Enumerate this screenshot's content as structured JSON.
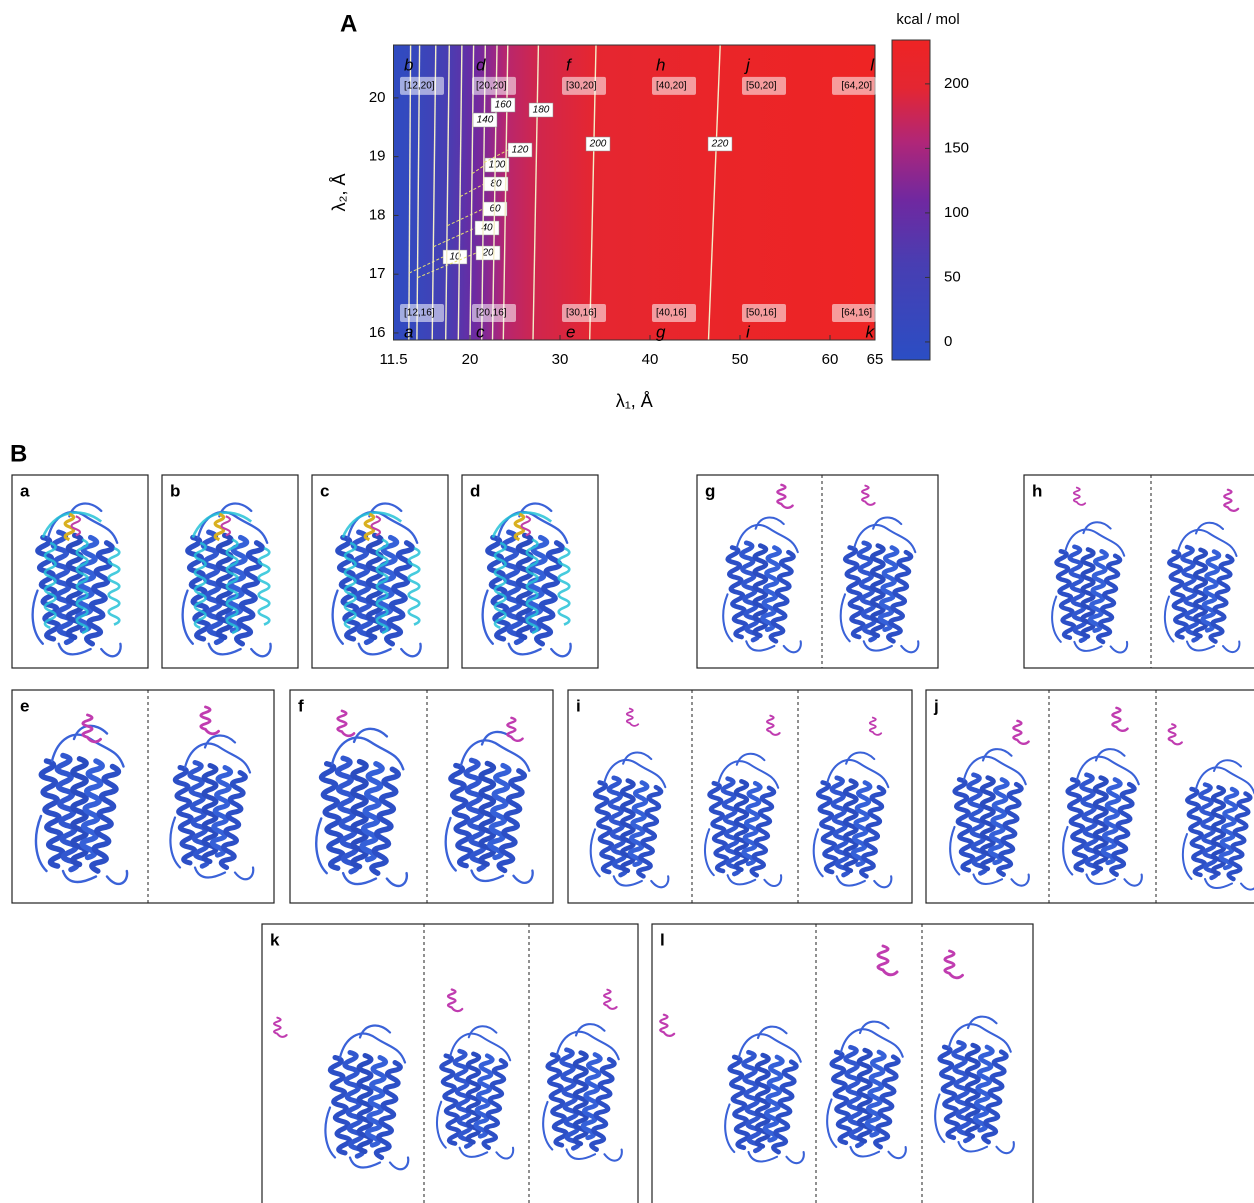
{
  "figure_a": {
    "label": "A",
    "chart_data": {
      "type": "heatmap",
      "x_label": "λ₁, Å",
      "y_label": "λ₂, Å",
      "xlim": [
        11.5,
        65
      ],
      "xticks": [
        11.5,
        20,
        30,
        40,
        50,
        60,
        65
      ],
      "ylim": [
        15.88,
        20.9
      ],
      "yticks": [
        16,
        17,
        18,
        19,
        20
      ],
      "colorbar": {
        "label": "kcal / mol",
        "lim": [
          -14,
          234
        ],
        "ticks": [
          0,
          50,
          100,
          150,
          200
        ]
      },
      "contours": [
        {
          "level": 10,
          "x": [
            13.2,
            13.4
          ]
        },
        {
          "level": 20,
          "x": [
            14.1,
            14.4
          ]
        },
        {
          "level": 40,
          "x": [
            15.8,
            16.2
          ]
        },
        {
          "level": 60,
          "x": [
            17.3,
            17.7
          ]
        },
        {
          "level": 80,
          "x": [
            18.7,
            19.1
          ]
        },
        {
          "level": 100,
          "x": [
            20.0,
            20.4
          ]
        },
        {
          "level": 120,
          "x": [
            21.3,
            21.7
          ]
        },
        {
          "level": 140,
          "x": [
            22.5,
            23.0
          ]
        },
        {
          "level": 160,
          "x": [
            23.7,
            24.2
          ]
        },
        {
          "level": 180,
          "x": [
            27.0,
            27.6
          ]
        },
        {
          "level": 200,
          "x": [
            33.3,
            34.0
          ]
        },
        {
          "level": 220,
          "x": [
            46.5,
            47.8
          ]
        }
      ],
      "points": [
        {
          "name": "a",
          "coords": "[12,16]",
          "x": 12,
          "y": 16
        },
        {
          "name": "b",
          "coords": "[12,20]",
          "x": 12,
          "y": 20
        },
        {
          "name": "c",
          "coords": "[20,16]",
          "x": 20,
          "y": 16
        },
        {
          "name": "d",
          "coords": "[20,20]",
          "x": 20,
          "y": 20
        },
        {
          "name": "e",
          "coords": "[30,16]",
          "x": 30,
          "y": 16
        },
        {
          "name": "f",
          "coords": "[30,20]",
          "x": 30,
          "y": 20
        },
        {
          "name": "g",
          "coords": "[40,16]",
          "x": 40,
          "y": 16
        },
        {
          "name": "h",
          "coords": "[40,20]",
          "x": 40,
          "y": 20
        },
        {
          "name": "i",
          "coords": "[50,16]",
          "x": 50,
          "y": 16
        },
        {
          "name": "j",
          "coords": "[50,20]",
          "x": 50,
          "y": 20
        },
        {
          "name": "k",
          "coords": "[64,16]",
          "x": 64,
          "y": 16
        },
        {
          "name": "l",
          "coords": "[64,20]",
          "x": 64,
          "y": 20
        }
      ]
    }
  },
  "figure_b": {
    "label": "B",
    "panels": [
      "a",
      "b",
      "c",
      "d",
      "g",
      "h",
      "e",
      "f",
      "i",
      "j",
      "k",
      "l"
    ]
  }
}
